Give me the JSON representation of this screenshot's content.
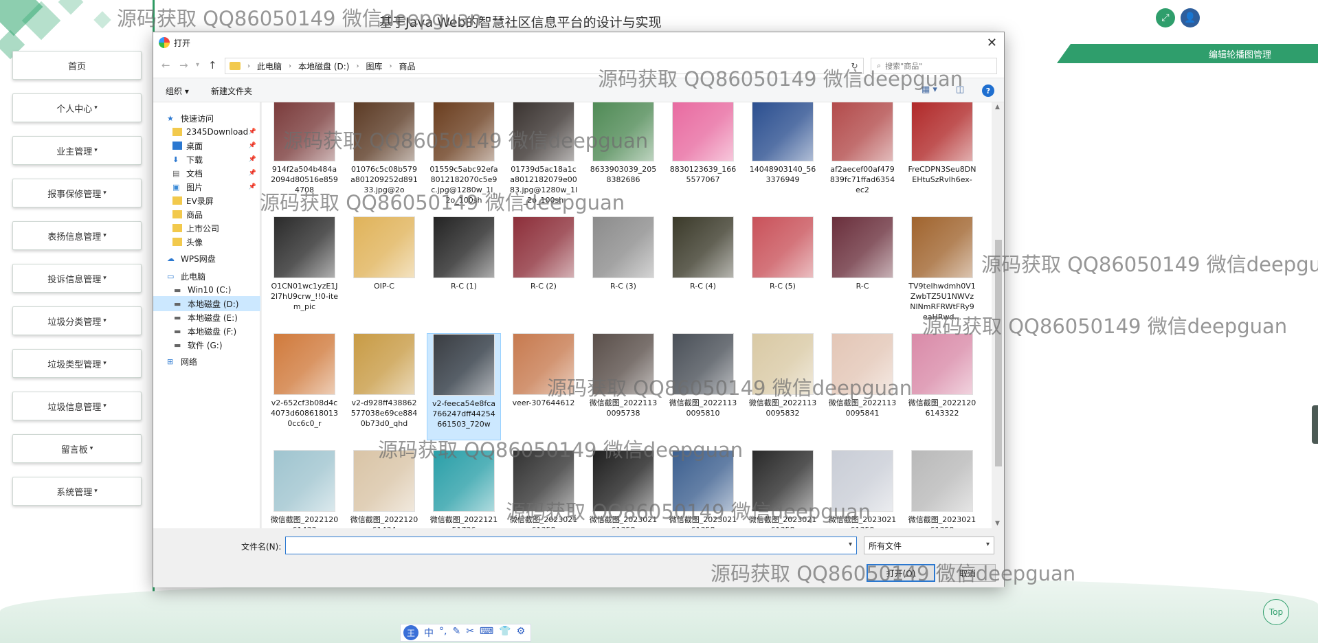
{
  "app": {
    "title": "基于Java Web的智慧社区信息平台的设计与实现",
    "banner_label": "编辑轮播图管理",
    "top_button": "Top",
    "accent_color": "#2f9e6c"
  },
  "sidebar": {
    "items": [
      {
        "label": "首页",
        "has_dropdown": false
      },
      {
        "label": "个人中心",
        "has_dropdown": true
      },
      {
        "label": "业主管理",
        "has_dropdown": true
      },
      {
        "label": "报事保修管理",
        "has_dropdown": true
      },
      {
        "label": "表扬信息管理",
        "has_dropdown": true
      },
      {
        "label": "投诉信息管理",
        "has_dropdown": true
      },
      {
        "label": "垃圾分类管理",
        "has_dropdown": true
      },
      {
        "label": "垃圾类型管理",
        "has_dropdown": true
      },
      {
        "label": "垃圾信息管理",
        "has_dropdown": true
      },
      {
        "label": "留言板",
        "has_dropdown": true
      },
      {
        "label": "系统管理",
        "has_dropdown": true
      }
    ]
  },
  "watermark_text": "源码获取 QQ86050149 微信deepguan",
  "dialog": {
    "title": "打开",
    "breadcrumb": [
      "此电脑",
      "本地磁盘 (D:)",
      "图库",
      "商品"
    ],
    "search_placeholder": "搜索\"商品\"",
    "toolbar": {
      "organize": "组织 ▾",
      "new_folder": "新建文件夹"
    },
    "nav_pane": [
      {
        "label": "快速访问",
        "icon": "star-icon",
        "pinned": false,
        "selected": false
      },
      {
        "label": "2345Download",
        "icon": "folder-icon",
        "pinned": true,
        "selected": false
      },
      {
        "label": "桌面",
        "icon": "desktop-icon",
        "pinned": true,
        "selected": false
      },
      {
        "label": "下载",
        "icon": "download-icon",
        "pinned": true,
        "selected": false
      },
      {
        "label": "文档",
        "icon": "document-icon",
        "pinned": true,
        "selected": false
      },
      {
        "label": "图片",
        "icon": "picture-icon",
        "pinned": true,
        "selected": false
      },
      {
        "label": "EV录屏",
        "icon": "folder-icon",
        "pinned": false,
        "selected": false
      },
      {
        "label": "商品",
        "icon": "folder-icon",
        "pinned": false,
        "selected": false
      },
      {
        "label": "上市公司",
        "icon": "folder-icon",
        "pinned": false,
        "selected": false
      },
      {
        "label": "头像",
        "icon": "folder-icon",
        "pinned": false,
        "selected": false
      },
      {
        "label": "WPS网盘",
        "icon": "cloud-icon",
        "pinned": false,
        "selected": false
      },
      {
        "label": "此电脑",
        "icon": "computer-icon",
        "pinned": false,
        "selected": false
      },
      {
        "label": "Win10 (C:)",
        "icon": "drive-icon",
        "pinned": false,
        "selected": false
      },
      {
        "label": "本地磁盘 (D:)",
        "icon": "drive-icon",
        "pinned": false,
        "selected": true
      },
      {
        "label": "本地磁盘 (E:)",
        "icon": "drive-icon",
        "pinned": false,
        "selected": false
      },
      {
        "label": "本地磁盘 (F:)",
        "icon": "drive-icon",
        "pinned": false,
        "selected": false
      },
      {
        "label": "软件 (G:)",
        "icon": "drive-icon",
        "pinned": false,
        "selected": false
      },
      {
        "label": "网络",
        "icon": "network-icon",
        "pinned": false,
        "selected": false
      }
    ],
    "files": [
      {
        "name": "914f2a504b484a2094d80516e8594708",
        "color": "#7a3b3b"
      },
      {
        "name": "01076c5c08b579a801209252d89133.jpg@2o",
        "color": "#5b3a24"
      },
      {
        "name": "01559c5abc92efa8012182070c5e9c.jpg@1280w_1l_2o_100sh",
        "color": "#6a3d1e"
      },
      {
        "name": "01739d5ac18a1ca8012182079e0083.jpg@1280w_1l_2o_100sh",
        "color": "#3a3330"
      },
      {
        "name": "8633903039_2058382686",
        "color": "#4f8a55"
      },
      {
        "name": "8830123639_1665577067",
        "color": "#e86aa0"
      },
      {
        "name": "14048903140_563376949",
        "color": "#2a4e8f"
      },
      {
        "name": "af2aecef00af479839fc71ffad6354ec2",
        "color": "#b24a4a"
      },
      {
        "name": "FreCDPN3Seu8DNEHtuSzRvlh6ex-",
        "color": "#b02828"
      },
      {
        "name": "O1CN01wc1yzE1J2l7hU9crw_!!0-item_pic",
        "color": "#2b2b2b"
      },
      {
        "name": "OIP-C",
        "color": "#e0b35a"
      },
      {
        "name": "R-C (1)",
        "color": "#242424"
      },
      {
        "name": "R-C (2)",
        "color": "#8d2f3a"
      },
      {
        "name": "R-C (3)",
        "color": "#8c8c8c"
      },
      {
        "name": "R-C (4)",
        "color": "#3b3a2a"
      },
      {
        "name": "R-C (5)",
        "color": "#c9525a"
      },
      {
        "name": "R-C",
        "color": "#6a2f3c"
      },
      {
        "name": "TV9telhwdmh0V1ZwbTZ5U1NWVzNlNmRFRWtFRy9eaHRwd...",
        "color": "#a0642e"
      },
      {
        "name": "v2-652cf3b08d4c4073d6086180130cc6c0_r",
        "color": "#d07a3c"
      },
      {
        "name": "v2-d928ff438862577038e69ce8840b73d0_qhd",
        "color": "#c89b45"
      },
      {
        "name": "v2-feeca54e8fca766247dff44254661503_720w",
        "color": "#3a3d42",
        "selected": true
      },
      {
        "name": "veer-307644612",
        "color": "#c77a4f"
      },
      {
        "name": "微信截图_20221130095738",
        "color": "#5a4f4a"
      },
      {
        "name": "微信截图_20221130095810",
        "color": "#4a5058"
      },
      {
        "name": "微信截图_20221130095832",
        "color": "#d9c9a4"
      },
      {
        "name": "微信截图_20221130095841",
        "color": "#e3c6b6"
      },
      {
        "name": "微信截图_20221206143322",
        "color": "#d98aa8"
      },
      {
        "name": "微信截图_202212061433",
        "color": "#9fc4cf"
      },
      {
        "name": "微信截图_202212061434",
        "color": "#d9c4a6"
      },
      {
        "name": "微信截图_202212151726",
        "color": "#2a9fa8"
      },
      {
        "name": "微信截图_202302161358",
        "color": "#333333"
      },
      {
        "name": "微信截图_202302161358",
        "color": "#1f1f1f"
      },
      {
        "name": "微信截图_202302161358",
        "color": "#3c5f8f"
      },
      {
        "name": "微信截图_202302161358",
        "color": "#2a2a2a"
      },
      {
        "name": "微信截图_202302161359",
        "color": "#c9cdd6"
      },
      {
        "name": "微信截图_202302161359",
        "color": "#b9b9b9"
      }
    ],
    "filename_label": "文件名(N):",
    "filename_value": "",
    "filetype": "所有文件",
    "open_button": "打开(O)",
    "cancel_button": "取消"
  },
  "ime_bar": {
    "logo": "王",
    "items": [
      "中",
      "°,",
      "✎",
      "✂",
      "⌨",
      "👕",
      "⚙"
    ]
  }
}
